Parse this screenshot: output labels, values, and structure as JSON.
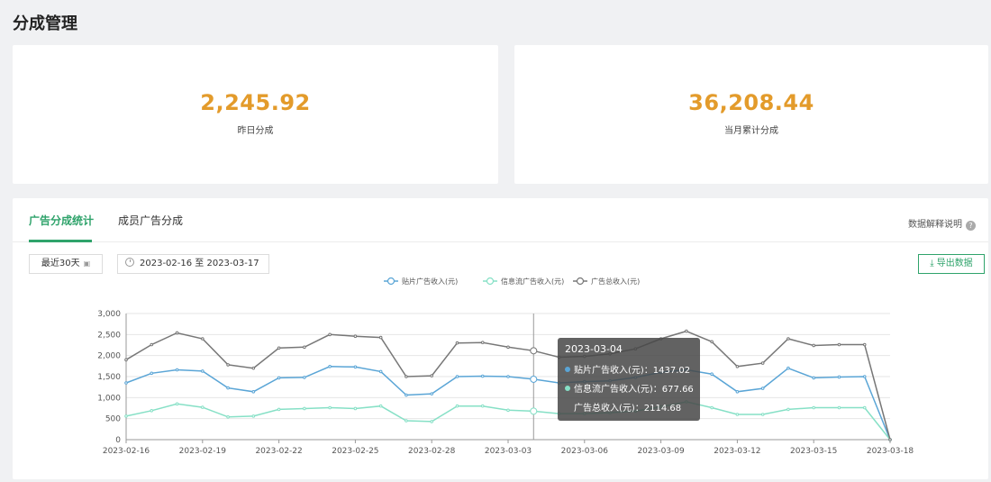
{
  "page": {
    "title": "分成管理"
  },
  "stats": [
    {
      "value": "2,245.92",
      "label": "昨日分成"
    },
    {
      "value": "36,208.44",
      "label": "当月累计分成"
    }
  ],
  "tabs": [
    {
      "label": "广告分成统计",
      "active": true
    },
    {
      "label": "成员广告分成",
      "active": false
    }
  ],
  "help": {
    "label": "数据解释说明",
    "icon": "question-icon"
  },
  "filters": {
    "range_label": "最近30天",
    "date_range": "2023-02-16 至 2023-03-17"
  },
  "export": {
    "label": "导出数据",
    "icon": "download-icon"
  },
  "colors": {
    "accent": "#2fa36b",
    "stat_value": "#e39b2b",
    "series": [
      "#5aa5d6",
      "#86e0c6",
      "#777777"
    ]
  },
  "chart_data": {
    "type": "line",
    "legend": [
      "贴片广告收入(元)",
      "信息流广告收入(元)",
      "广告总收入(元)"
    ],
    "legend_position": "top-center",
    "y_ticks": [
      "0",
      "500",
      "1,000",
      "1,500",
      "2,000",
      "2,500",
      "3,000"
    ],
    "ylim": [
      0,
      3000
    ],
    "x": [
      "2023-02-16",
      "2023-02-17",
      "2023-02-18",
      "2023-02-19",
      "2023-02-20",
      "2023-02-21",
      "2023-02-22",
      "2023-02-23",
      "2023-02-24",
      "2023-02-25",
      "2023-02-26",
      "2023-02-27",
      "2023-02-28",
      "2023-03-01",
      "2023-03-02",
      "2023-03-03",
      "2023-03-04",
      "2023-03-05",
      "2023-03-06",
      "2023-03-07",
      "2023-03-08",
      "2023-03-09",
      "2023-03-10",
      "2023-03-11",
      "2023-03-12",
      "2023-03-13",
      "2023-03-14",
      "2023-03-15",
      "2023-03-16",
      "2023-03-17",
      "2023-03-18"
    ],
    "x_tick_labels": [
      "2023-02-16",
      "2023-02-19",
      "2023-02-22",
      "2023-02-25",
      "2023-02-28",
      "2023-03-03",
      "2023-03-06",
      "2023-03-09",
      "2023-03-12",
      "2023-03-15",
      "2023-03-18"
    ],
    "series": [
      {
        "name": "贴片广告收入(元)",
        "values": [
          1350,
          1580,
          1660,
          1630,
          1230,
          1140,
          1470,
          1480,
          1740,
          1730,
          1620,
          1060,
          1090,
          1500,
          1510,
          1500,
          1437.02,
          1350,
          1380,
          1400,
          1480,
          1600,
          1660,
          1560,
          1140,
          1220,
          1700,
          1470,
          1490,
          1500,
          0
        ]
      },
      {
        "name": "信息流广告收入(元)",
        "values": [
          560,
          690,
          850,
          770,
          540,
          560,
          720,
          740,
          760,
          740,
          800,
          450,
          430,
          800,
          800,
          700,
          677.66,
          620,
          620,
          640,
          680,
          780,
          900,
          760,
          600,
          600,
          720,
          760,
          760,
          760,
          0
        ]
      },
      {
        "name": "广告总收入(元)",
        "values": [
          1900,
          2260,
          2540,
          2400,
          1780,
          1700,
          2180,
          2200,
          2500,
          2460,
          2430,
          1500,
          1520,
          2300,
          2310,
          2200,
          2114.68,
          1960,
          1980,
          2040,
          2160,
          2400,
          2580,
          2330,
          1740,
          1820,
          2400,
          2240,
          2260,
          2260,
          0
        ]
      }
    ],
    "tooltip": {
      "title": "2023-03-04",
      "rows": [
        {
          "label": "贴片广告收入(元)：1437.02"
        },
        {
          "label": "信息流广告收入(元)：677.66"
        },
        {
          "label": "广告总收入(元)：2114.68"
        }
      ],
      "index": 16
    }
  }
}
